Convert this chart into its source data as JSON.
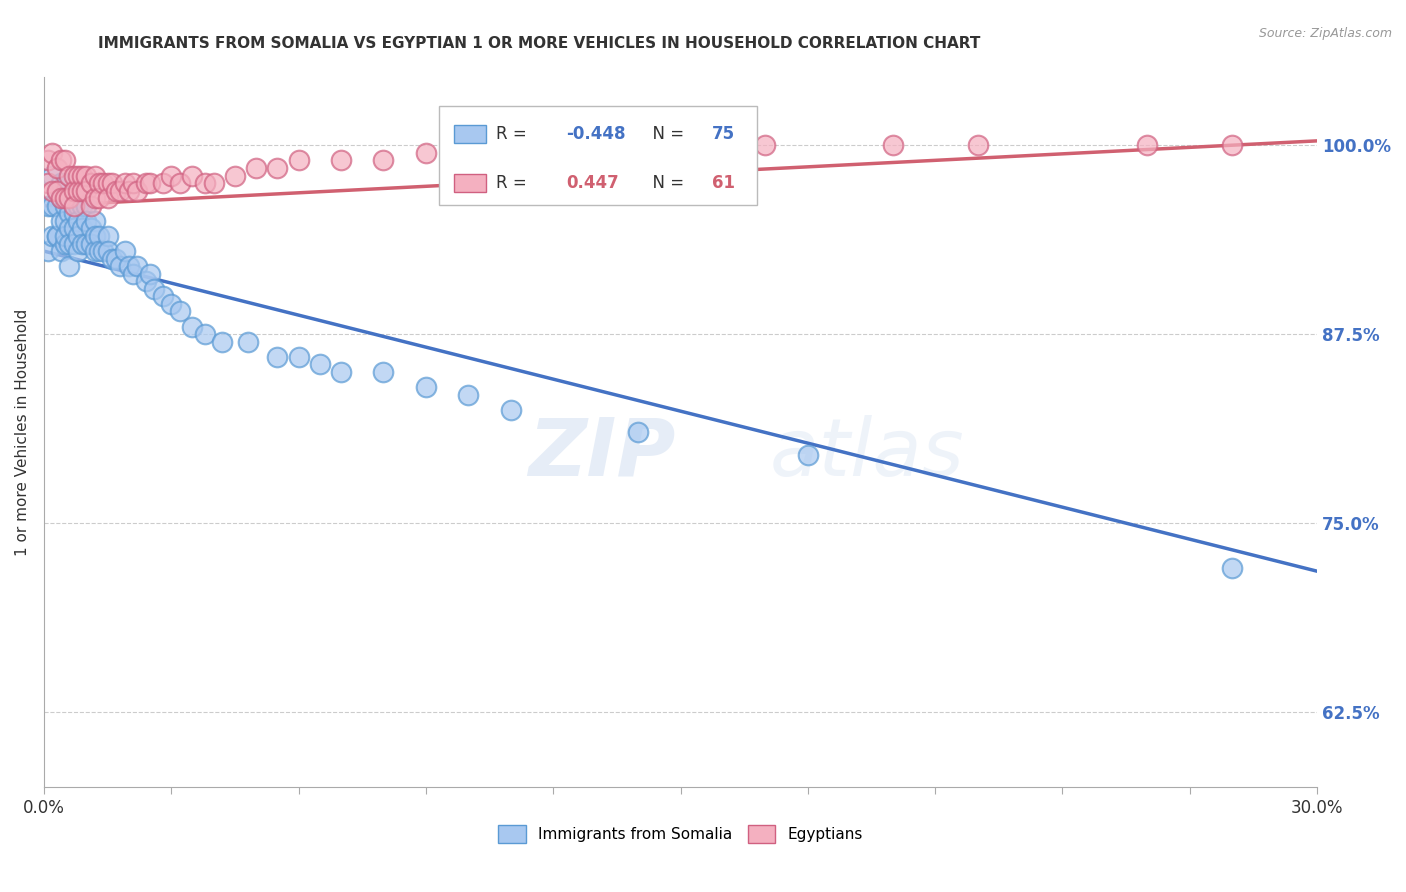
{
  "title": "IMMIGRANTS FROM SOMALIA VS EGYPTIAN 1 OR MORE VEHICLES IN HOUSEHOLD CORRELATION CHART",
  "source": "Source: ZipAtlas.com",
  "ylabel": "1 or more Vehicles in Household",
  "ytick_labels": [
    "100.0%",
    "87.5%",
    "75.0%",
    "62.5%"
  ],
  "ytick_values": [
    1.0,
    0.875,
    0.75,
    0.625
  ],
  "xlim": [
    0.0,
    0.3
  ],
  "ylim": [
    0.575,
    1.045
  ],
  "somalia_color": "#a8c8f0",
  "somalia_edge": "#5a9ad4",
  "egyptian_color": "#f4b0c0",
  "egyptian_edge": "#d06080",
  "somalia_R": "-0.448",
  "somalia_N": "75",
  "egyptian_R": "0.447",
  "egyptian_N": "61",
  "line_somalia_color": "#4472c4",
  "line_egyptian_color": "#d06070",
  "watermark_zip": "ZIP",
  "watermark_atlas": "atlas",
  "somalia_scatter_x": [
    0.001,
    0.001,
    0.002,
    0.002,
    0.002,
    0.003,
    0.003,
    0.003,
    0.003,
    0.004,
    0.004,
    0.004,
    0.004,
    0.005,
    0.005,
    0.005,
    0.005,
    0.005,
    0.006,
    0.006,
    0.006,
    0.006,
    0.006,
    0.007,
    0.007,
    0.007,
    0.007,
    0.008,
    0.008,
    0.008,
    0.008,
    0.009,
    0.009,
    0.009,
    0.01,
    0.01,
    0.01,
    0.011,
    0.011,
    0.012,
    0.012,
    0.012,
    0.013,
    0.013,
    0.014,
    0.015,
    0.015,
    0.016,
    0.017,
    0.018,
    0.019,
    0.02,
    0.021,
    0.022,
    0.024,
    0.025,
    0.026,
    0.028,
    0.03,
    0.032,
    0.035,
    0.038,
    0.042,
    0.048,
    0.055,
    0.06,
    0.065,
    0.07,
    0.08,
    0.09,
    0.1,
    0.11,
    0.14,
    0.18,
    0.28
  ],
  "somalia_scatter_y": [
    0.96,
    0.93,
    0.98,
    0.96,
    0.94,
    0.97,
    0.96,
    0.94,
    0.94,
    0.975,
    0.965,
    0.95,
    0.93,
    0.975,
    0.96,
    0.95,
    0.935,
    0.94,
    0.965,
    0.955,
    0.945,
    0.935,
    0.92,
    0.965,
    0.955,
    0.945,
    0.935,
    0.96,
    0.95,
    0.94,
    0.93,
    0.96,
    0.945,
    0.935,
    0.96,
    0.95,
    0.935,
    0.945,
    0.935,
    0.95,
    0.94,
    0.93,
    0.94,
    0.93,
    0.93,
    0.94,
    0.93,
    0.925,
    0.925,
    0.92,
    0.93,
    0.92,
    0.915,
    0.92,
    0.91,
    0.915,
    0.905,
    0.9,
    0.895,
    0.89,
    0.88,
    0.875,
    0.87,
    0.87,
    0.86,
    0.86,
    0.855,
    0.85,
    0.85,
    0.84,
    0.835,
    0.825,
    0.81,
    0.795,
    0.72
  ],
  "egyptian_scatter_x": [
    0.001,
    0.001,
    0.002,
    0.002,
    0.003,
    0.003,
    0.004,
    0.004,
    0.005,
    0.005,
    0.006,
    0.006,
    0.007,
    0.007,
    0.007,
    0.008,
    0.008,
    0.009,
    0.009,
    0.01,
    0.01,
    0.011,
    0.011,
    0.012,
    0.012,
    0.013,
    0.013,
    0.014,
    0.015,
    0.015,
    0.016,
    0.017,
    0.018,
    0.019,
    0.02,
    0.021,
    0.022,
    0.024,
    0.025,
    0.028,
    0.03,
    0.032,
    0.035,
    0.038,
    0.04,
    0.045,
    0.05,
    0.055,
    0.06,
    0.07,
    0.08,
    0.09,
    0.1,
    0.11,
    0.13,
    0.15,
    0.17,
    0.2,
    0.22,
    0.26,
    0.28
  ],
  "egyptian_scatter_y": [
    0.99,
    0.975,
    0.995,
    0.97,
    0.985,
    0.97,
    0.99,
    0.965,
    0.99,
    0.965,
    0.98,
    0.965,
    0.98,
    0.97,
    0.96,
    0.98,
    0.97,
    0.98,
    0.97,
    0.98,
    0.97,
    0.975,
    0.96,
    0.98,
    0.965,
    0.975,
    0.965,
    0.975,
    0.975,
    0.965,
    0.975,
    0.97,
    0.97,
    0.975,
    0.97,
    0.975,
    0.97,
    0.975,
    0.975,
    0.975,
    0.98,
    0.975,
    0.98,
    0.975,
    0.975,
    0.98,
    0.985,
    0.985,
    0.99,
    0.99,
    0.99,
    0.995,
    0.995,
    0.995,
    0.995,
    1.0,
    1.0,
    1.0,
    1.0,
    1.0,
    1.0
  ],
  "somalia_line_x0": 0.0,
  "somalia_line_y0": 0.93,
  "somalia_line_x1": 0.3,
  "somalia_line_y1": 0.718,
  "egyptian_line_x0": 0.0,
  "egyptian_line_y0": 0.96,
  "egyptian_line_x1": 0.3,
  "egyptian_line_y1": 1.003
}
